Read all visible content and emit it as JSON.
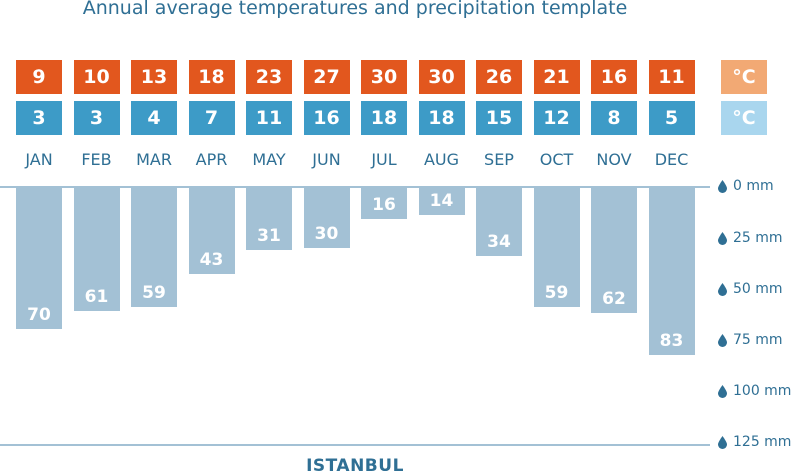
{
  "title": "Annual average temperatures and precipitation template",
  "city": "ISTANBUL",
  "unit_high": "°C",
  "unit_low": "°C",
  "colors": {
    "high": "#e2571e",
    "low": "#3d9bc7",
    "bar": "#a3c1d5",
    "text": "#2f6f94"
  },
  "chart_data": {
    "type": "bar",
    "categories": [
      "JAN",
      "FEB",
      "MAR",
      "APR",
      "MAY",
      "JUN",
      "JUL",
      "AUG",
      "SEP",
      "OCT",
      "NOV",
      "DEC"
    ],
    "temp_high": [
      9,
      10,
      13,
      18,
      23,
      27,
      30,
      30,
      26,
      21,
      16,
      11
    ],
    "temp_low": [
      3,
      3,
      4,
      7,
      11,
      16,
      18,
      18,
      15,
      12,
      8,
      5
    ],
    "precipitation": [
      70,
      61,
      59,
      43,
      31,
      30,
      16,
      14,
      34,
      59,
      62,
      83
    ],
    "y_ticks": [
      "0 mm",
      "25 mm",
      "50 mm",
      "75 mm",
      "100 mm",
      "125 mm"
    ],
    "ylim": [
      0,
      125
    ],
    "y_direction": "downward"
  }
}
